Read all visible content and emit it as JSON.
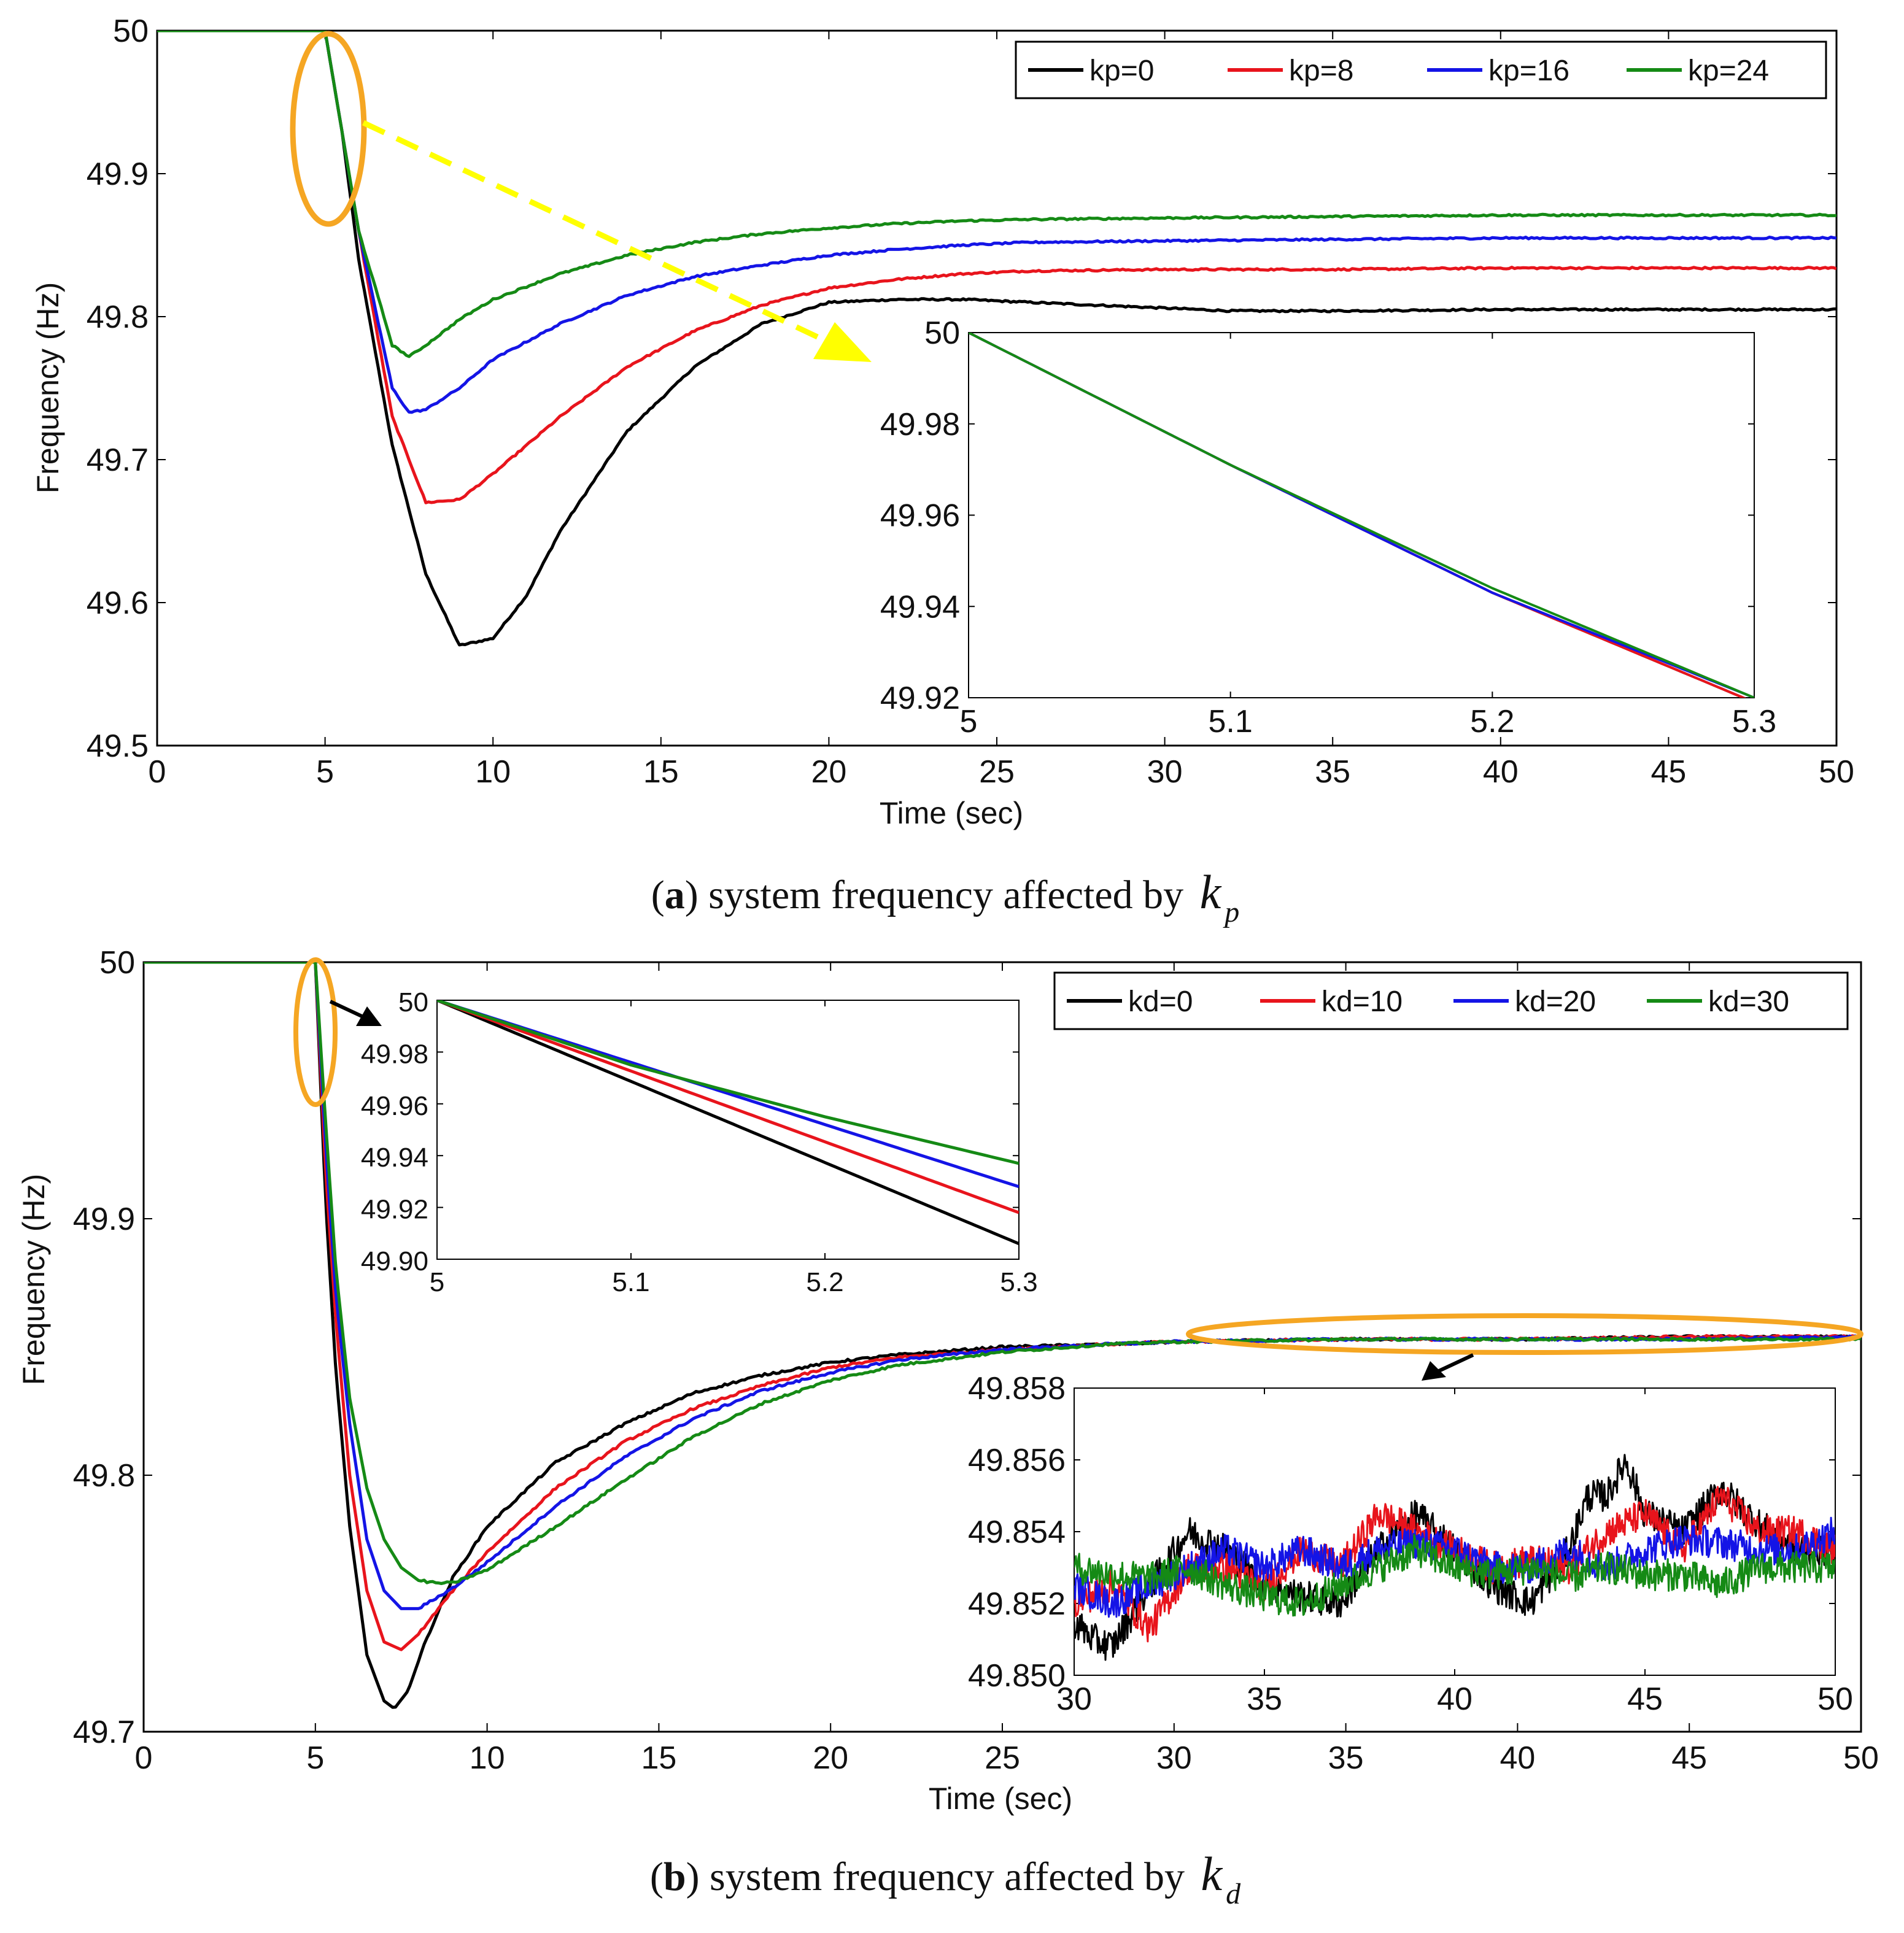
{
  "chart_data": [
    {
      "id": "a",
      "type": "line",
      "caption": {
        "letter": "a",
        "text": "system frequency affected by",
        "symbol": "k",
        "subscript": "p"
      },
      "xlabel": "Time (sec)",
      "ylabel": "Frequency (Hz)",
      "xlim": [
        0,
        50
      ],
      "ylim": [
        49.5,
        50
      ],
      "xticks": [
        "0",
        "5",
        "10",
        "15",
        "20",
        "25",
        "30",
        "35",
        "40",
        "45",
        "50"
      ],
      "yticks": [
        "49.5",
        "49.6",
        "49.7",
        "49.8",
        "49.9",
        "50"
      ],
      "legend": "top-right",
      "series": [
        {
          "name": "kp=0",
          "color": "#000000",
          "x": [
            0,
            5,
            5.5,
            6,
            7,
            8,
            9,
            10,
            11,
            12,
            14,
            16,
            18,
            20,
            22,
            24,
            26,
            28,
            30,
            32,
            35,
            40,
            45,
            50
          ],
          "y": [
            50,
            50,
            49.93,
            49.84,
            49.71,
            49.62,
            49.57,
            49.575,
            49.605,
            49.65,
            49.72,
            49.765,
            49.795,
            49.81,
            49.812,
            49.812,
            49.81,
            49.808,
            49.806,
            49.804,
            49.804,
            49.805,
            49.805,
            49.805
          ]
        },
        {
          "name": "kp=8",
          "color": "#e8141c",
          "x": [
            0,
            5,
            5.5,
            6,
            7,
            8,
            9,
            10,
            11,
            12,
            14,
            16,
            18,
            20,
            22,
            24,
            26,
            30,
            35,
            40,
            45,
            50
          ],
          "y": [
            50,
            50,
            49.93,
            49.86,
            49.73,
            49.67,
            49.672,
            49.69,
            49.71,
            49.73,
            49.765,
            49.79,
            49.808,
            49.82,
            49.826,
            49.83,
            49.832,
            49.833,
            49.833,
            49.834,
            49.834,
            49.834
          ]
        },
        {
          "name": "kp=16",
          "color": "#1414e6",
          "x": [
            0,
            5,
            5.5,
            6,
            7,
            7.5,
            8,
            9,
            10,
            12,
            14,
            16,
            18,
            20,
            22,
            24,
            26,
            30,
            35,
            40,
            45,
            50
          ],
          "y": [
            50,
            50,
            49.93,
            49.86,
            49.75,
            49.733,
            49.735,
            49.75,
            49.77,
            49.795,
            49.815,
            49.828,
            49.836,
            49.843,
            49.847,
            49.85,
            49.852,
            49.853,
            49.854,
            49.855,
            49.855,
            49.855
          ]
        },
        {
          "name": "kp=24",
          "color": "#158a15",
          "x": [
            0,
            5,
            5.5,
            6,
            7,
            7.5,
            8,
            9,
            10,
            12,
            14,
            16,
            18,
            20,
            22,
            24,
            26,
            30,
            35,
            40,
            45,
            50
          ],
          "y": [
            50,
            50,
            49.93,
            49.86,
            49.78,
            49.772,
            49.78,
            49.798,
            49.812,
            49.83,
            49.843,
            49.852,
            49.858,
            49.862,
            49.865,
            49.867,
            49.868,
            49.869,
            49.87,
            49.871,
            49.871,
            49.871
          ]
        }
      ],
      "annotations": {
        "zoom_ellipse_around": "t=5 s",
        "arrow": "yellow dashed arrow to inset"
      },
      "inset": {
        "xlim": [
          5,
          5.3
        ],
        "ylim": [
          49.92,
          50
        ],
        "xticks": [
          "5",
          "5.1",
          "5.2",
          "5.3"
        ],
        "yticks": [
          "49.92",
          "49.94",
          "49.96",
          "49.98",
          "50"
        ],
        "series": [
          {
            "name": "kp=0",
            "color": "#000000",
            "x": [
              5,
              5.1,
              5.2,
              5.3
            ],
            "y": [
              50,
              49.971,
              49.943,
              49.919
            ]
          },
          {
            "name": "kp=8",
            "color": "#e8141c",
            "x": [
              5,
              5.1,
              5.2,
              5.3
            ],
            "y": [
              50,
              49.971,
              49.943,
              49.919
            ]
          },
          {
            "name": "kp=16",
            "color": "#1414e6",
            "x": [
              5,
              5.1,
              5.2,
              5.3
            ],
            "y": [
              50,
              49.971,
              49.943,
              49.92
            ]
          },
          {
            "name": "kp=24",
            "color": "#158a15",
            "x": [
              5,
              5.1,
              5.2,
              5.3
            ],
            "y": [
              50,
              49.971,
              49.944,
              49.92
            ]
          }
        ]
      }
    },
    {
      "id": "b",
      "type": "line",
      "caption": {
        "letter": "b",
        "text": "system frequency affected by",
        "symbol": "k",
        "subscript": "d"
      },
      "xlabel": "Time (sec)",
      "ylabel": "Frequency (Hz)",
      "xlim": [
        0,
        50
      ],
      "ylim": [
        49.7,
        50
      ],
      "xticks": [
        "0",
        "5",
        "10",
        "15",
        "20",
        "25",
        "30",
        "35",
        "40",
        "45",
        "50"
      ],
      "yticks": [
        "49.7",
        "49.8",
        "49.9",
        "50"
      ],
      "legend": "top-right",
      "series": [
        {
          "name": "kd=0",
          "color": "#000000",
          "x": [
            0,
            5,
            5.3,
            5.6,
            6,
            6.5,
            7,
            7.3,
            7.7,
            8.2,
            9,
            10,
            12,
            14,
            16,
            18,
            20,
            22,
            25,
            28,
            30,
            35,
            40,
            45,
            50
          ],
          "y": [
            50,
            50,
            49.906,
            49.84,
            49.78,
            49.73,
            49.712,
            49.709,
            49.716,
            49.735,
            49.76,
            49.78,
            49.805,
            49.82,
            49.832,
            49.839,
            49.844,
            49.847,
            49.85,
            49.851,
            49.852,
            49.853,
            49.853,
            49.854,
            49.854
          ]
        },
        {
          "name": "kd=10",
          "color": "#e8141c",
          "x": [
            0,
            5,
            5.3,
            5.6,
            6,
            6.5,
            7,
            7.5,
            8,
            9,
            10,
            12,
            14,
            16,
            18,
            20,
            22,
            25,
            28,
            30,
            35,
            40,
            45,
            50
          ],
          "y": [
            50,
            50,
            49.918,
            49.86,
            49.8,
            49.755,
            49.735,
            49.732,
            49.738,
            49.755,
            49.77,
            49.795,
            49.813,
            49.826,
            49.835,
            49.842,
            49.846,
            49.849,
            49.851,
            49.852,
            49.853,
            49.853,
            49.854,
            49.854
          ]
        },
        {
          "name": "kd=20",
          "color": "#1414e6",
          "x": [
            0,
            5,
            5.3,
            5.6,
            6,
            6.5,
            7,
            7.5,
            8,
            9,
            10,
            12,
            14,
            16,
            18,
            20,
            22,
            25,
            28,
            30,
            35,
            40,
            45,
            50
          ],
          "y": [
            50,
            50,
            49.928,
            49.87,
            49.82,
            49.775,
            49.755,
            49.748,
            49.748,
            49.756,
            49.766,
            49.788,
            49.807,
            49.822,
            49.833,
            49.84,
            49.845,
            49.849,
            49.851,
            49.852,
            49.853,
            49.853,
            49.853,
            49.854
          ]
        },
        {
          "name": "kd=30",
          "color": "#158a15",
          "x": [
            0,
            5,
            5.3,
            5.6,
            6,
            6.5,
            7,
            7.5,
            8,
            8.5,
            9,
            10,
            12,
            14,
            16,
            18,
            20,
            22,
            25,
            28,
            30,
            35,
            40,
            45,
            50
          ],
          "y": [
            50,
            50,
            49.937,
            49.88,
            49.83,
            49.795,
            49.775,
            49.764,
            49.759,
            49.758,
            49.758,
            49.763,
            49.78,
            49.798,
            49.815,
            49.828,
            49.837,
            49.843,
            49.848,
            49.851,
            49.852,
            49.853,
            49.853,
            49.853,
            49.853
          ]
        }
      ],
      "annotations": {
        "zoom_ellipses_around": [
          "t=5 s",
          "t=30-50 s"
        ],
        "arrows": "black arrows to insets"
      },
      "inset": {
        "xlim": [
          5,
          5.3
        ],
        "ylim": [
          49.9,
          50
        ],
        "xticks": [
          "5",
          "5.1",
          "5.2",
          "5.3"
        ],
        "yticks": [
          "49.90",
          "49.92",
          "49.94",
          "49.96",
          "49.98",
          "50"
        ],
        "series": [
          {
            "name": "kd=0",
            "color": "#000000",
            "x": [
              5,
              5.3
            ],
            "y": [
              50,
              49.906
            ]
          },
          {
            "name": "kd=10",
            "color": "#e8141c",
            "x": [
              5,
              5.3
            ],
            "y": [
              50,
              49.918
            ]
          },
          {
            "name": "kd=20",
            "color": "#1414e6",
            "x": [
              5,
              5.3
            ],
            "y": [
              50,
              49.928
            ]
          },
          {
            "name": "kd=30",
            "color": "#158a15",
            "x": [
              5,
              5.1,
              5.2,
              5.3
            ],
            "y": [
              50,
              49.975,
              49.955,
              49.937
            ]
          }
        ]
      },
      "inset2": {
        "xlim": [
          30,
          50
        ],
        "ylim": [
          49.85,
          49.858
        ],
        "xticks": [
          "30",
          "35",
          "40",
          "45",
          "50"
        ],
        "yticks": [
          "49.850",
          "49.852",
          "49.854",
          "49.856",
          "49.858"
        ],
        "series": [
          {
            "name": "kd=0",
            "color": "#000000",
            "x": [
              30,
              30.5,
              31,
              32,
              33,
              34,
              35,
              36,
              37,
              38,
              39,
              40,
              41,
              42,
              43,
              43.5,
              44,
              44.5,
              45,
              46,
              47,
              48,
              49,
              50
            ],
            "y": [
              49.8515,
              49.851,
              49.8508,
              49.8525,
              49.854,
              49.8535,
              49.8525,
              49.8522,
              49.852,
              49.8535,
              49.8545,
              49.8535,
              49.8525,
              49.852,
              49.8535,
              49.855,
              49.855,
              49.856,
              49.8545,
              49.854,
              49.8552,
              49.8542,
              49.8535,
              49.8535
            ]
          },
          {
            "name": "kd=10",
            "color": "#e8141c",
            "x": [
              30,
              31,
              32,
              33,
              34,
              35,
              36,
              37,
              38,
              39,
              40,
              41,
              42,
              43,
              44,
              45,
              46,
              47,
              48,
              49,
              50
            ],
            "y": [
              49.852,
              49.8525,
              49.8513,
              49.853,
              49.853,
              49.8525,
              49.8535,
              49.853,
              49.8545,
              49.854,
              49.8535,
              49.853,
              49.8532,
              49.853,
              49.854,
              49.8545,
              49.8535,
              49.855,
              49.854,
              49.854,
              49.8535
            ]
          },
          {
            "name": "kd=20",
            "color": "#1414e6",
            "x": [
              30,
              31,
              32,
              33,
              34,
              35,
              36,
              37,
              38,
              39,
              40,
              41,
              42,
              43,
              44,
              45,
              46,
              47,
              48,
              49,
              50
            ],
            "y": [
              49.8525,
              49.852,
              49.8525,
              49.853,
              49.8535,
              49.853,
              49.8535,
              49.853,
              49.8535,
              49.8537,
              49.8535,
              49.853,
              49.853,
              49.8535,
              49.853,
              49.8535,
              49.8538,
              49.8537,
              49.8535,
              49.8535,
              49.854
            ]
          },
          {
            "name": "kd=30",
            "color": "#158a15",
            "x": [
              30,
              31,
              32,
              33,
              34,
              35,
              36,
              37,
              38,
              39,
              40,
              41,
              42,
              43,
              44,
              45,
              46,
              47,
              48,
              49,
              50
            ],
            "y": [
              49.853,
              49.8528,
              49.8527,
              49.853,
              49.8525,
              49.8522,
              49.852,
              49.8525,
              49.853,
              49.8535,
              49.853,
              49.8528,
              49.853,
              49.8527,
              49.853,
              49.8528,
              49.8528,
              49.8525,
              49.853,
              49.853,
              49.853
            ]
          }
        ]
      }
    }
  ],
  "colors": {
    "ellipse": "#f5a623",
    "yellow_arrow": "#ffff00",
    "axis": "#000000"
  }
}
